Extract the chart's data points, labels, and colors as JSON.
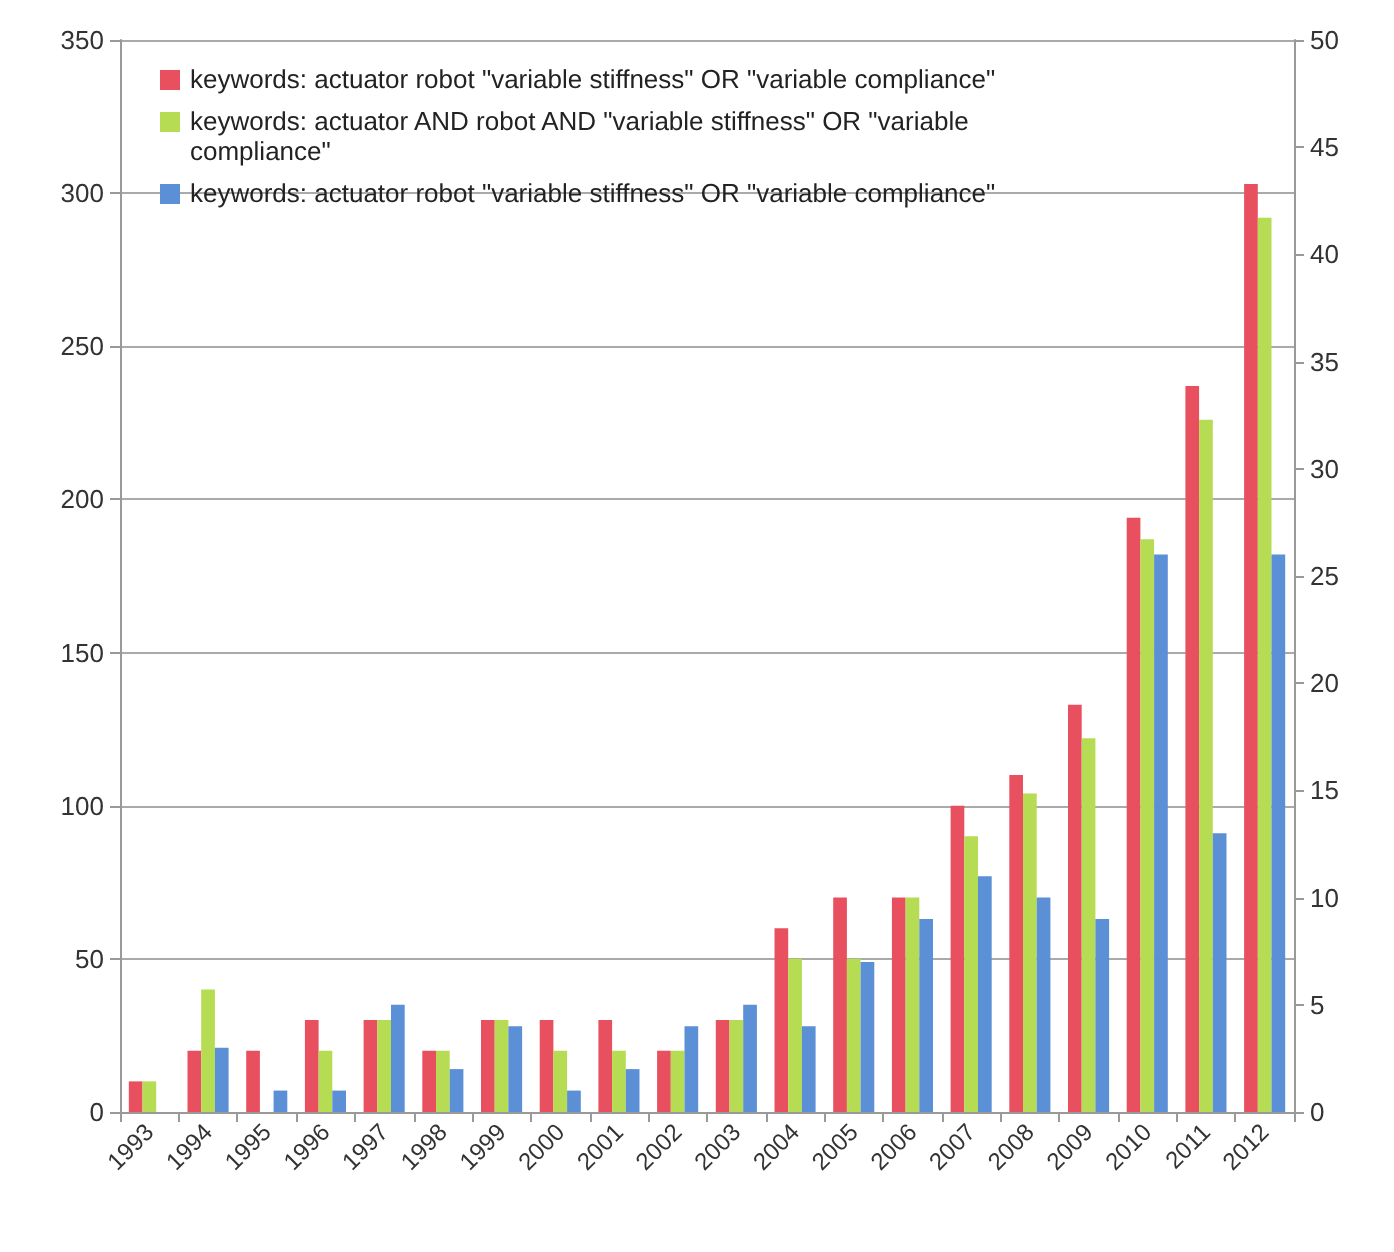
{
  "chart_data": {
    "type": "bar",
    "categories": [
      "1993",
      "1994",
      "1995",
      "1996",
      "1997",
      "1998",
      "1999",
      "2000",
      "2001",
      "2002",
      "2003",
      "2004",
      "2005",
      "2006",
      "2007",
      "2008",
      "2009",
      "2010",
      "2011",
      "2012"
    ],
    "series": [
      {
        "name": "keywords: actuator robot \"variable stiffness\" OR \"variable compliance\"",
        "color": "#e8505f",
        "values": [
          10,
          20,
          20,
          30,
          30,
          20,
          30,
          30,
          30,
          20,
          30,
          60,
          70,
          70,
          100,
          110,
          133,
          194,
          237,
          303
        ]
      },
      {
        "name": "keywords: actuator AND robot AND \"variable stiffness\" OR \"variable compliance\"",
        "color": "#b5dc52",
        "values": [
          10,
          40,
          0,
          20,
          30,
          20,
          30,
          20,
          20,
          20,
          30,
          50,
          50,
          70,
          90,
          104,
          122,
          187,
          226,
          292
        ]
      },
      {
        "name": "keywords: actuator robot \"variable stiffness\" OR \"variable compliance\"",
        "color": "#5b8fd6",
        "axis": "y2",
        "values": [
          0,
          3,
          1,
          1,
          5,
          2,
          4,
          1,
          2,
          4,
          5,
          4,
          7,
          9,
          11,
          10,
          9,
          26,
          13,
          26
        ]
      }
    ],
    "ylim": [
      0,
      350
    ],
    "yticks": [
      0,
      50,
      100,
      150,
      200,
      250,
      300,
      350
    ],
    "y2lim": [
      0,
      50
    ],
    "y2ticks": [
      0,
      5,
      10,
      15,
      20,
      25,
      30,
      35,
      40,
      45,
      50
    ],
    "grid": "y",
    "legend": "top left"
  }
}
